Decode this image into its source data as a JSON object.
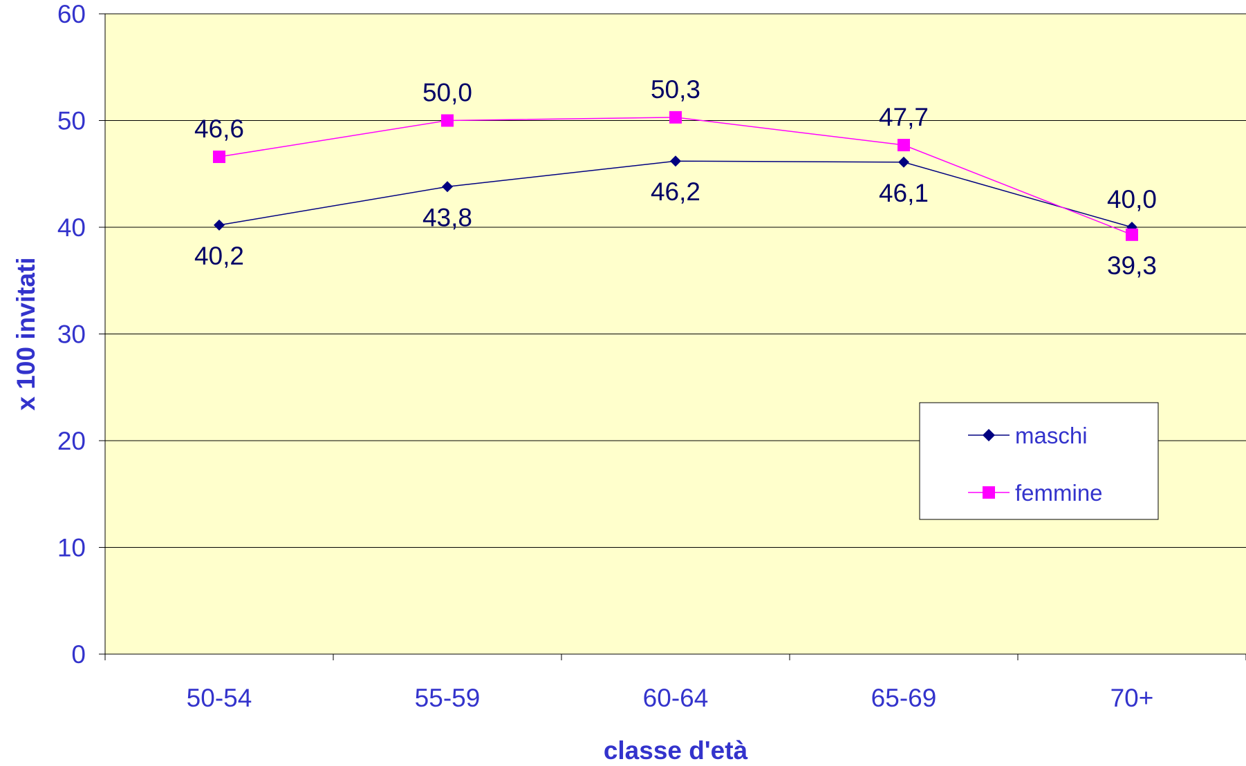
{
  "chart_data": {
    "type": "line",
    "categories": [
      "50-54",
      "55-59",
      "60-64",
      "65-69",
      "70+"
    ],
    "series": [
      {
        "name": "maschi",
        "values": [
          40.2,
          43.8,
          46.2,
          46.1,
          40.0
        ],
        "labels": [
          "40,2",
          "43,8",
          "46,2",
          "46,1",
          "40,0"
        ],
        "color": "#000080",
        "marker": "diamond"
      },
      {
        "name": "femmine",
        "values": [
          46.6,
          50.0,
          50.3,
          47.7,
          39.3
        ],
        "labels": [
          "46,6",
          "50,0",
          "50,3",
          "47,7",
          "39,3"
        ],
        "color": "#FF00FF",
        "marker": "square"
      }
    ],
    "xlabel": "classe d'età",
    "ylabel": "x 100 invitati",
    "ylim": [
      0,
      60
    ],
    "yticks": [
      "0",
      "10",
      "20",
      "30",
      "40",
      "50",
      "60"
    ],
    "grid": true,
    "legend_position": "right",
    "colors": {
      "plot_background": "#FFFFCC",
      "text": "#3333CC",
      "data_label": "#000066",
      "gridline": "#000000"
    }
  }
}
